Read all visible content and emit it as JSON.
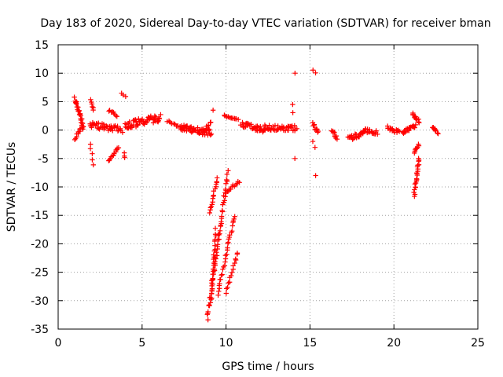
{
  "chart_data": {
    "type": "scatter",
    "title": "Day 183 of 2020, Sidereal Day-to-day VTEC variation (SDTVAR) for receiver bman",
    "xlabel": "GPS time / hours",
    "ylabel": "SDTVAR / TECUs",
    "xlim": [
      0,
      25
    ],
    "ylim": [
      -35,
      15
    ],
    "xticks": [
      0,
      5,
      10,
      15,
      20,
      25
    ],
    "yticks": [
      -35,
      -30,
      -25,
      -20,
      -15,
      -10,
      -5,
      0,
      5,
      10,
      15
    ],
    "grid": true,
    "marker": "plus",
    "color": "#ff0000",
    "series": [
      {
        "name": "SDTVAR",
        "segments": [
          {
            "x": [
              1.0,
              1.5
            ],
            "y": [
              5.5,
              0.5
            ],
            "n": 30,
            "spread": 0.7
          },
          {
            "x": [
              1.0,
              1.4
            ],
            "y": [
              -1.5,
              0.5
            ],
            "n": 10,
            "spread": 0.4
          },
          {
            "x": [
              1.9,
              2.1
            ],
            "y": [
              5.3,
              3.5
            ],
            "n": 6,
            "spread": 0.3
          },
          {
            "x": [
              1.9,
              2.1
            ],
            "y": [
              -2.5,
              -6.0
            ],
            "n": 5,
            "spread": 0.3
          },
          {
            "x": [
              1.9,
              3.8
            ],
            "y": [
              1.0,
              0.0
            ],
            "n": 45,
            "spread": 1.1
          },
          {
            "x": [
              3.0,
              3.6
            ],
            "y": [
              -5.5,
              -3.0
            ],
            "n": 14,
            "spread": 0.3
          },
          {
            "x": [
              3.0,
              3.5
            ],
            "y": [
              3.5,
              2.5
            ],
            "n": 8,
            "spread": 0.4
          },
          {
            "x": [
              3.9,
              4.0
            ],
            "y": [
              -4.0,
              -5.0
            ],
            "n": 3,
            "spread": 0.4
          },
          {
            "x": [
              4.0,
              6.1
            ],
            "y": [
              0.8,
              2.2
            ],
            "n": 60,
            "spread": 1.3
          },
          {
            "x": [
              3.8,
              4.0
            ],
            "y": [
              6.5,
              6.0
            ],
            "n": 3,
            "spread": 0.2
          },
          {
            "x": [
              6.5,
              7.3
            ],
            "y": [
              1.5,
              0.5
            ],
            "n": 12,
            "spread": 0.4
          },
          {
            "x": [
              7.3,
              9.1
            ],
            "y": [
              0.5,
              -0.5
            ],
            "n": 55,
            "spread": 1.2
          },
          {
            "x": [
              8.8,
              9.1
            ],
            "y": [
              0.5,
              1.5
            ],
            "n": 6,
            "spread": 0.6
          },
          {
            "x": [
              8.9,
              10.1
            ],
            "y": [
              -33.0,
              -7.5
            ],
            "n": 60,
            "spread": 0.9
          },
          {
            "x": [
              9.0,
              9.5
            ],
            "y": [
              -14.5,
              -8.5
            ],
            "n": 16,
            "spread": 0.4
          },
          {
            "x": [
              9.1,
              9.4
            ],
            "y": [
              -30.0,
              -17.5
            ],
            "n": 24,
            "spread": 0.6
          },
          {
            "x": [
              9.5,
              10.5
            ],
            "y": [
              -29.0,
              -15.0
            ],
            "n": 30,
            "spread": 0.7
          },
          {
            "x": [
              10.0,
              10.7
            ],
            "y": [
              -28.5,
              -21.5
            ],
            "n": 15,
            "spread": 0.5
          },
          {
            "x": [
              10.0,
              10.8
            ],
            "y": [
              -11.0,
              -9.0
            ],
            "n": 12,
            "spread": 0.5
          },
          {
            "x": [
              9.2,
              9.3
            ],
            "y": [
              3.5,
              3.5
            ],
            "n": 1,
            "spread": 0.0
          },
          {
            "x": [
              9.9,
              10.7
            ],
            "y": [
              2.5,
              1.8
            ],
            "n": 14,
            "spread": 0.3
          },
          {
            "x": [
              10.9,
              12.3
            ],
            "y": [
              1.0,
              0.0
            ],
            "n": 35,
            "spread": 0.9
          },
          {
            "x": [
              12.3,
              14.2
            ],
            "y": [
              0.5,
              0.3
            ],
            "n": 45,
            "spread": 1.0
          },
          {
            "x": [
              14.0,
              14.0
            ],
            "y": [
              4.5,
              3.0
            ],
            "n": 2,
            "spread": 0.2
          },
          {
            "x": [
              14.1,
              14.1
            ],
            "y": [
              10.0,
              10.0
            ],
            "n": 1,
            "spread": 0.0
          },
          {
            "x": [
              14.1,
              14.1
            ],
            "y": [
              -5.0,
              -5.0
            ],
            "n": 1,
            "spread": 0.0
          },
          {
            "x": [
              15.2,
              15.5
            ],
            "y": [
              1.0,
              -0.5
            ],
            "n": 12,
            "spread": 0.8
          },
          {
            "x": [
              15.2,
              15.3
            ],
            "y": [
              10.5,
              10.0
            ],
            "n": 2,
            "spread": 0.2
          },
          {
            "x": [
              15.2,
              15.3
            ],
            "y": [
              -2.0,
              -3.0
            ],
            "n": 2,
            "spread": 0.3
          },
          {
            "x": [
              15.3,
              15.3
            ],
            "y": [
              -8.0,
              -8.0
            ],
            "n": 1,
            "spread": 0.0
          },
          {
            "x": [
              16.3,
              16.6
            ],
            "y": [
              0.0,
              -1.5
            ],
            "n": 10,
            "spread": 0.6
          },
          {
            "x": [
              17.3,
              18.2
            ],
            "y": [
              -1.5,
              -0.5
            ],
            "n": 25,
            "spread": 0.9
          },
          {
            "x": [
              18.2,
              19.0
            ],
            "y": [
              0.0,
              -0.5
            ],
            "n": 18,
            "spread": 0.7
          },
          {
            "x": [
              19.6,
              20.3
            ],
            "y": [
              0.5,
              -0.5
            ],
            "n": 16,
            "spread": 0.8
          },
          {
            "x": [
              20.5,
              21.3
            ],
            "y": [
              -0.5,
              0.8
            ],
            "n": 20,
            "spread": 0.7
          },
          {
            "x": [
              21.1,
              21.5
            ],
            "y": [
              3.0,
              1.5
            ],
            "n": 14,
            "spread": 0.5
          },
          {
            "x": [
              21.2,
              21.5
            ],
            "y": [
              -4.0,
              -2.5
            ],
            "n": 8,
            "spread": 0.3
          },
          {
            "x": [
              21.2,
              21.5
            ],
            "y": [
              -11.5,
              -5.0
            ],
            "n": 22,
            "spread": 0.4
          },
          {
            "x": [
              22.3,
              22.6
            ],
            "y": [
              0.5,
              -0.5
            ],
            "n": 10,
            "spread": 0.5
          }
        ]
      }
    ]
  }
}
